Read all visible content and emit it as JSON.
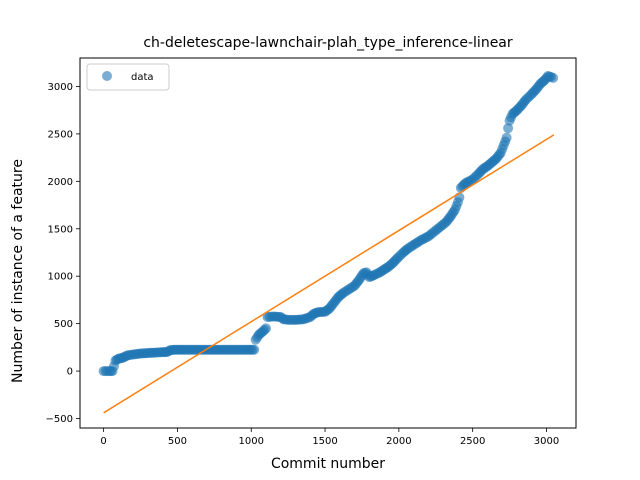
{
  "chart_data": {
    "type": "scatter",
    "title": "ch-deletescape-lawnchair-plah_type_inference-linear",
    "xlabel": "Commit number",
    "ylabel": "Number of instance of a feature",
    "xlim": [
      -160,
      3200
    ],
    "ylim": [
      -600,
      3300
    ],
    "xticks": [
      0,
      500,
      1000,
      1500,
      2000,
      2500,
      3000
    ],
    "yticks": [
      -500,
      0,
      500,
      1000,
      1500,
      2000,
      2500,
      3000
    ],
    "legend": {
      "placement": "top-left",
      "entries": [
        "data"
      ]
    },
    "grid": false,
    "colors": {
      "data": "#1f77b4",
      "fit": "#ff7f0e"
    },
    "series": [
      {
        "name": "data",
        "kind": "scatter",
        "points": [
          [
            0,
            0
          ],
          [
            40,
            0
          ],
          [
            60,
            0
          ],
          [
            70,
            50
          ],
          [
            80,
            110
          ],
          [
            100,
            130
          ],
          [
            130,
            140
          ],
          [
            160,
            165
          ],
          [
            200,
            175
          ],
          [
            250,
            185
          ],
          [
            300,
            190
          ],
          [
            350,
            195
          ],
          [
            400,
            200
          ],
          [
            430,
            200
          ],
          [
            450,
            220
          ],
          [
            480,
            225
          ],
          [
            550,
            225
          ],
          [
            650,
            225
          ],
          [
            750,
            225
          ],
          [
            850,
            225
          ],
          [
            950,
            225
          ],
          [
            1020,
            225
          ],
          [
            1030,
            330
          ],
          [
            1050,
            380
          ],
          [
            1080,
            420
          ],
          [
            1100,
            450
          ],
          [
            1110,
            570
          ],
          [
            1150,
            575
          ],
          [
            1200,
            570
          ],
          [
            1220,
            545
          ],
          [
            1260,
            540
          ],
          [
            1300,
            540
          ],
          [
            1350,
            545
          ],
          [
            1400,
            570
          ],
          [
            1420,
            600
          ],
          [
            1450,
            620
          ],
          [
            1500,
            625
          ],
          [
            1530,
            660
          ],
          [
            1560,
            720
          ],
          [
            1590,
            780
          ],
          [
            1620,
            820
          ],
          [
            1660,
            860
          ],
          [
            1700,
            900
          ],
          [
            1730,
            960
          ],
          [
            1760,
            1030
          ],
          [
            1780,
            1040
          ],
          [
            1800,
            990
          ],
          [
            1830,
            1010
          ],
          [
            1870,
            1040
          ],
          [
            1900,
            1070
          ],
          [
            1930,
            1100
          ],
          [
            1960,
            1140
          ],
          [
            1990,
            1190
          ],
          [
            2030,
            1250
          ],
          [
            2060,
            1290
          ],
          [
            2100,
            1330
          ],
          [
            2150,
            1380
          ],
          [
            2200,
            1420
          ],
          [
            2240,
            1470
          ],
          [
            2280,
            1520
          ],
          [
            2320,
            1570
          ],
          [
            2350,
            1630
          ],
          [
            2380,
            1700
          ],
          [
            2400,
            1780
          ],
          [
            2410,
            1830
          ],
          [
            2420,
            1930
          ],
          [
            2450,
            1980
          ],
          [
            2500,
            2020
          ],
          [
            2540,
            2080
          ],
          [
            2570,
            2130
          ],
          [
            2600,
            2160
          ],
          [
            2630,
            2200
          ],
          [
            2660,
            2240
          ],
          [
            2690,
            2300
          ],
          [
            2710,
            2380
          ],
          [
            2730,
            2460
          ],
          [
            2740,
            2560
          ],
          [
            2750,
            2640
          ],
          [
            2770,
            2710
          ],
          [
            2800,
            2750
          ],
          [
            2830,
            2800
          ],
          [
            2860,
            2860
          ],
          [
            2900,
            2920
          ],
          [
            2930,
            2970
          ],
          [
            2960,
            3030
          ],
          [
            2990,
            3070
          ],
          [
            3010,
            3110
          ],
          [
            3030,
            3100
          ],
          [
            3045,
            3090
          ]
        ]
      },
      {
        "name": "fit",
        "kind": "line",
        "points": [
          [
            0,
            -440
          ],
          [
            3050,
            2490
          ]
        ]
      }
    ]
  }
}
